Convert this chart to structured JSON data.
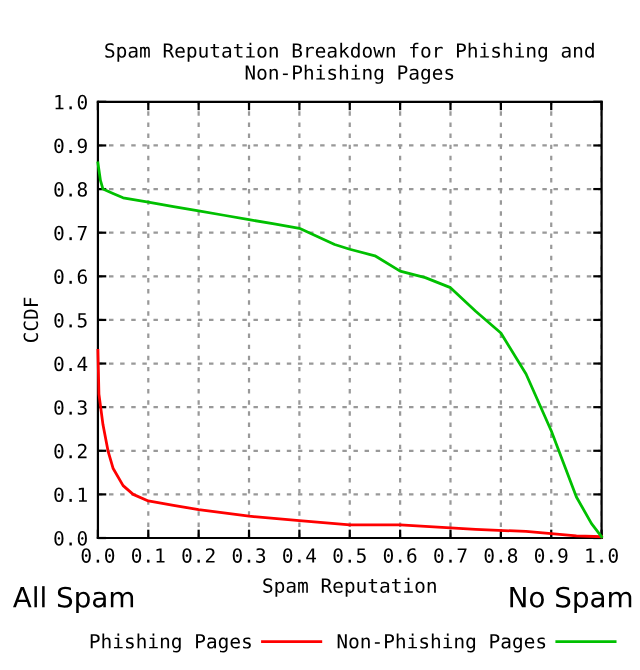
{
  "chart_data": {
    "type": "line",
    "title": "Spam Reputation Breakdown for Phishing and\nNon-Phishing Pages",
    "xlabel": "Spam Reputation",
    "ylabel": "CCDF",
    "annotations": [
      "All Spam",
      "No Spam"
    ],
    "xlim": [
      0,
      1
    ],
    "ylim": [
      0,
      1
    ],
    "xticks": [
      {
        "value": 0,
        "label": "0.0"
      },
      0.1,
      0.2,
      0.3,
      0.4,
      0.5,
      0.6,
      0.7,
      0.8,
      0.9,
      {
        "value": 1,
        "label": "1.0"
      }
    ],
    "yticks": [
      {
        "value": 0,
        "label": "0.0"
      },
      0.1,
      0.2,
      0.3,
      0.4,
      0.5,
      0.6,
      0.7,
      0.8,
      0.9,
      {
        "value": 1,
        "label": "1.0"
      }
    ],
    "grid": true,
    "legend": "bottom",
    "marker": "none",
    "line_style": "solid",
    "series": [
      {
        "name": "Phishing Pages",
        "color": "#ff0000",
        "x": [
          0,
          0.002,
          0.01,
          0.02,
          0.03,
          0.05,
          0.07,
          0.1,
          0.15,
          0.2,
          0.3,
          0.4,
          0.5,
          0.6,
          0.75,
          0.85,
          0.9,
          0.95,
          1.0
        ],
        "values": [
          0.43,
          0.33,
          0.26,
          0.2,
          0.16,
          0.12,
          0.1,
          0.085,
          0.075,
          0.065,
          0.05,
          0.04,
          0.03,
          0.03,
          0.02,
          0.015,
          0.01,
          0.005,
          0.003
        ]
      },
      {
        "name": "Non-Phishing Pages",
        "color": "#00c000",
        "x": [
          0,
          0.005,
          0.01,
          0.03,
          0.05,
          0.1,
          0.15,
          0.2,
          0.25,
          0.3,
          0.35,
          0.4,
          0.47,
          0.5,
          0.55,
          0.6,
          0.65,
          0.7,
          0.75,
          0.8,
          0.85,
          0.9,
          0.95,
          0.98,
          1.0
        ],
        "values": [
          0.86,
          0.82,
          0.8,
          0.79,
          0.78,
          0.77,
          0.76,
          0.75,
          0.74,
          0.73,
          0.72,
          0.71,
          0.673,
          0.662,
          0.647,
          0.612,
          0.597,
          0.574,
          0.52,
          0.47,
          0.376,
          0.246,
          0.094,
          0.033,
          0.003
        ]
      }
    ]
  }
}
